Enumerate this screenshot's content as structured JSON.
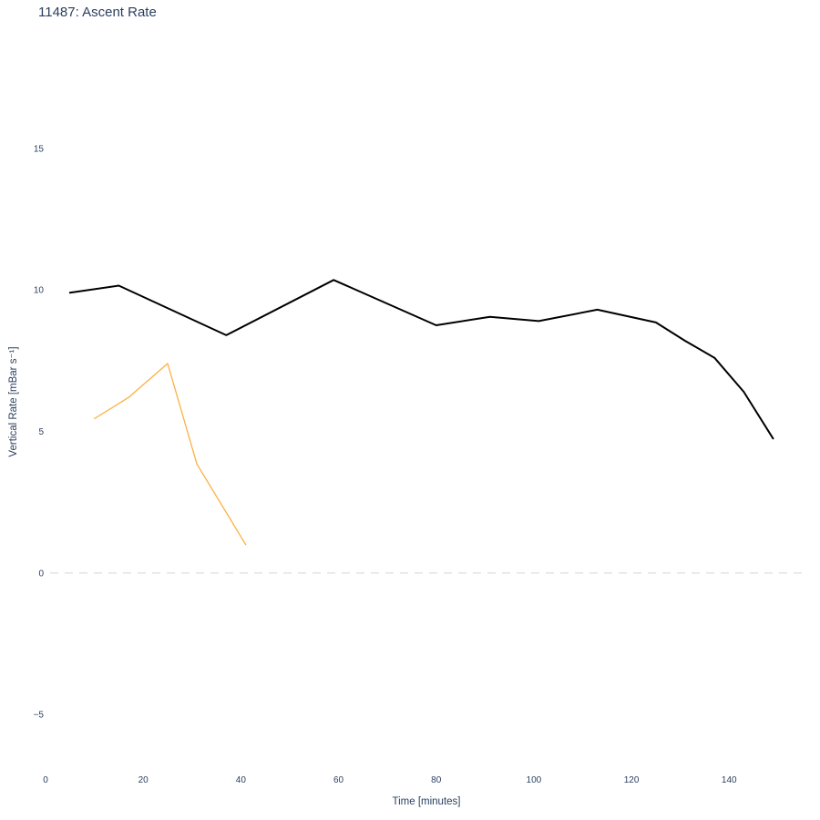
{
  "title": "11487: Ascent Rate",
  "text_color": "#2a3f5f",
  "background_color": "#ffffff",
  "chart_data": {
    "type": "line",
    "title": "11487: Ascent Rate",
    "xlabel": "Time [minutes]",
    "ylabel": "Vertical Rate [mBar s⁻¹]",
    "xlim": [
      0,
      156
    ],
    "ylim": [
      -6.86,
      19.34
    ],
    "x_ticks": [
      0,
      20,
      40,
      60,
      80,
      100,
      120,
      140
    ],
    "y_ticks": [
      -5,
      0,
      5,
      10,
      15
    ],
    "grid": false,
    "legend": "none",
    "zero_line": {
      "value": 0,
      "style": "dashed",
      "color": "#e3e3e3"
    },
    "series": [
      {
        "name": "series-1-black",
        "color": "#000000",
        "width": 2,
        "x": [
          5,
          15,
          37,
          59,
          80,
          91,
          101,
          113,
          125,
          131,
          137,
          143,
          149
        ],
        "y": [
          9.9,
          10.15,
          8.4,
          10.35,
          8.75,
          9.05,
          8.9,
          9.3,
          8.85,
          8.2,
          7.6,
          6.4,
          4.75
        ]
      },
      {
        "name": "series-2-orange",
        "color": "#fcb040",
        "width": 1.3,
        "x": [
          10,
          17,
          25,
          31,
          41
        ],
        "y": [
          5.45,
          6.2,
          7.4,
          3.85,
          1.0
        ]
      }
    ]
  }
}
